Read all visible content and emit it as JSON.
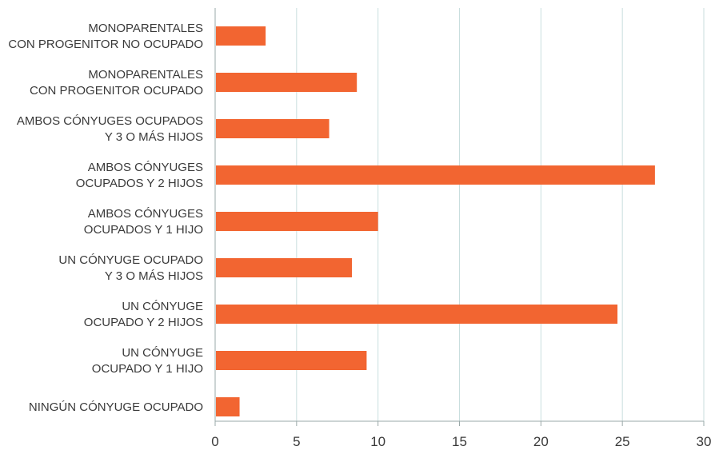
{
  "chart_data": {
    "type": "bar",
    "orientation": "horizontal",
    "categories": [
      [
        "MONOPARENTALES",
        "CON PROGENITOR NO OCUPADO"
      ],
      [
        "MONOPARENTALES",
        "CON PROGENITOR OCUPADO"
      ],
      [
        "AMBOS CÓNYUGES OCUPADOS",
        "Y 3 O MÁS HIJOS"
      ],
      [
        "AMBOS CÓNYUGES",
        "OCUPADOS Y 2 HIJOS"
      ],
      [
        "AMBOS CÓNYUGES",
        "OCUPADOS Y 1 HIJO"
      ],
      [
        "UN CÓNYUGE OCUPADO",
        "Y 3 O MÁS HIJOS"
      ],
      [
        "UN CÓNYUGE",
        "OCUPADO Y 2 HIJOS"
      ],
      [
        "UN CÓNYUGE",
        "OCUPADO Y 1 HIJO"
      ],
      [
        "NINGÚN CÓNYUGE OCUPADO"
      ]
    ],
    "values": [
      3.1,
      8.7,
      7.0,
      27.0,
      10.0,
      8.4,
      24.7,
      9.3,
      1.5
    ],
    "xlim": [
      0,
      30
    ],
    "xticks": [
      "0",
      "5",
      "10",
      "15",
      "20",
      "25",
      "30"
    ],
    "grid": "vertical",
    "bar_color": "#f26531",
    "grid_color": "#c9dede",
    "title": "",
    "xlabel": "",
    "ylabel": ""
  }
}
